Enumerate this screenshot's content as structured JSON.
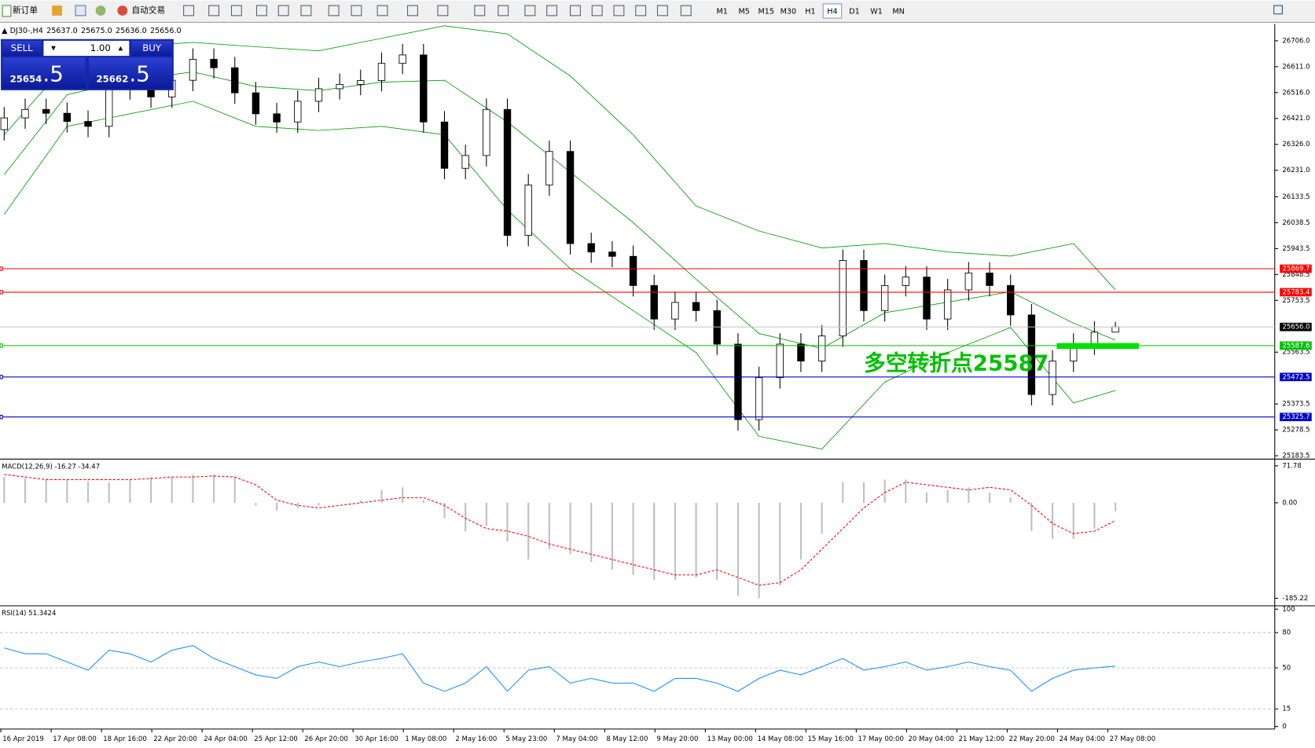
{
  "toolbar": {
    "new_order": "新订单",
    "auto_trading": "自动交易",
    "timeframes": [
      "M1",
      "M5",
      "M15",
      "M30",
      "H1",
      "H4",
      "D1",
      "W1",
      "MN"
    ],
    "active": "H4"
  },
  "trade_panel": {
    "sell": "SELL",
    "buy": "BUY",
    "lots": "1.00",
    "bid": {
      "main": "25654",
      "frac": ".5"
    },
    "ask": {
      "main": "25662",
      "frac": ".5"
    }
  },
  "chart_data": [
    {
      "type": "candlestick",
      "title": "DJ30-,H4",
      "quote": [
        "25637.0",
        "25675.0",
        "25636.0",
        "25656.0"
      ],
      "open": [
        26380,
        26423,
        26454,
        26440,
        26410,
        26392,
        26561,
        26530,
        26500,
        26561,
        26638,
        26607,
        26515,
        26438,
        26408,
        26484,
        26530,
        26546,
        26560,
        26623,
        26654,
        26408,
        26238,
        26285,
        26454,
        25992,
        26177,
        26300,
        25962,
        25931,
        25915,
        25808,
        25685,
        25746,
        25716,
        25593,
        25316,
        25470,
        25593,
        25531,
        25623,
        25900,
        25716,
        25808,
        25839,
        25685,
        25792,
        25854,
        25808,
        25700,
        25408,
        25531,
        25593,
        25637
      ],
      "high": [
        26463,
        26494,
        26494,
        26480,
        26450,
        26601,
        26601,
        26570,
        26601,
        26678,
        26678,
        26647,
        26555,
        26478,
        26524,
        26570,
        26586,
        26600,
        26663,
        26694,
        26694,
        26448,
        26325,
        26494,
        26494,
        26217,
        26340,
        26340,
        26002,
        25971,
        25955,
        25848,
        25786,
        25786,
        25756,
        25633,
        25510,
        25633,
        25633,
        25663,
        25940,
        25940,
        25848,
        25879,
        25879,
        25832,
        25894,
        25894,
        25848,
        25740,
        25571,
        25633,
        25677,
        25675
      ],
      "low": [
        26340,
        26383,
        26400,
        26370,
        26352,
        26352,
        26490,
        26460,
        26460,
        26521,
        26567,
        26475,
        26398,
        26368,
        26368,
        26444,
        26490,
        26506,
        26520,
        26583,
        26368,
        26198,
        26198,
        26245,
        25952,
        25952,
        26137,
        25922,
        25891,
        25875,
        25768,
        25645,
        25645,
        25676,
        25553,
        25276,
        25276,
        25430,
        25491,
        25491,
        25583,
        25676,
        25676,
        25768,
        25645,
        25645,
        25752,
        25768,
        25660,
        25368,
        25368,
        25491,
        25553,
        25636
      ],
      "close": [
        26423,
        26454,
        26440,
        26410,
        26392,
        26561,
        26530,
        26500,
        26561,
        26638,
        26607,
        26515,
        26438,
        26408,
        26484,
        26530,
        26546,
        26560,
        26623,
        26654,
        26408,
        26238,
        26285,
        26454,
        25992,
        26177,
        26300,
        25962,
        25931,
        25915,
        25808,
        25685,
        25746,
        25716,
        25593,
        25316,
        25470,
        25593,
        25531,
        25623,
        25900,
        25716,
        25808,
        25839,
        25685,
        25792,
        25854,
        25808,
        25700,
        25408,
        25531,
        25593,
        25637,
        25656
      ],
      "bands": {
        "color": "#00a000",
        "index": [
          0,
          3,
          6,
          9,
          12,
          15,
          18,
          21,
          24,
          27,
          30,
          33,
          36,
          39,
          42,
          45,
          48,
          51,
          53
        ],
        "upper": [
          26361,
          26623,
          26684,
          26700,
          26684,
          26669,
          26715,
          26761,
          26731,
          26577,
          26361,
          26100,
          26008,
          25946,
          25962,
          25931,
          25916,
          25962,
          25792
        ],
        "middle": [
          26215,
          26508,
          26561,
          26592,
          26538,
          26523,
          26554,
          26561,
          26408,
          26224,
          26039,
          25831,
          25632,
          25577,
          25708,
          25747,
          25785,
          25670,
          25608
        ],
        "lower": [
          26069,
          26392,
          26438,
          26484,
          26392,
          26377,
          26392,
          26361,
          26085,
          25870,
          25716,
          25562,
          25255,
          25208,
          25454,
          25562,
          25654,
          25377,
          25423
        ]
      },
      "levels": [
        {
          "value": 25869.7,
          "color": "#ff0000"
        },
        {
          "value": 25783.4,
          "color": "#ff0000"
        },
        {
          "value": 25587.6,
          "color": "#00c000"
        },
        {
          "value": 25472.5,
          "color": "#0000c8"
        },
        {
          "value": 25325.7,
          "color": "#0000c8"
        }
      ],
      "current": {
        "value": 25656,
        "label": "25656.0"
      },
      "annotation": "多空转折点25587",
      "ylim": [
        25174.3,
        26767.5
      ],
      "yticks": [
        {
          "value": 26706,
          "label": "26706.0"
        },
        {
          "value": 26611,
          "label": "26611.0"
        },
        {
          "value": 26516,
          "label": "26516.0"
        },
        {
          "value": 26421,
          "label": "26421.0"
        },
        {
          "value": 26326,
          "label": "26326.0"
        },
        {
          "value": 26231,
          "label": "26231.0"
        },
        {
          "value": 26133.5,
          "label": "26133.5"
        },
        {
          "value": 26038.5,
          "label": "26038.5"
        },
        {
          "value": 25943.5,
          "label": "25943.5"
        },
        {
          "value": 25848.5,
          "label": "25848.5"
        },
        {
          "value": 25753.5,
          "label": "25753.5"
        },
        {
          "value": 25563.5,
          "label": "25563.5"
        },
        {
          "value": 25373.5,
          "label": "25373.5"
        },
        {
          "value": 25278.5,
          "label": "25278.5"
        },
        {
          "value": 25183.5,
          "label": "25183.5"
        }
      ],
      "time_axis": [
        "16 Apr 2019",
        "17 Apr 08:00",
        "18 Apr 16:00",
        "22 Apr 20:00",
        "24 Apr 04:00",
        "25 Apr 12:00",
        "26 Apr 20:00",
        "30 Apr 16:00",
        "1 May 08:00",
        "2 May 16:00",
        "5 May 23:00",
        "7 May 04:00",
        "8 May 12:00",
        "9 May 20:00",
        "13 May 00:00",
        "14 May 08:00",
        "15 May 16:00",
        "17 May 00:00",
        "20 May 04:00",
        "21 May 12:00",
        "22 May 20:00",
        "24 May 04:00",
        "27 May 08:00"
      ]
    },
    {
      "type": "macd",
      "title": "MACD(12,26,9) -16.27 -34.47",
      "series": [
        {
          "color": "#c0c0c0",
          "values": [
            50,
            48,
            45,
            45,
            42,
            40,
            45,
            50,
            50,
            55,
            55,
            50,
            -5,
            -15,
            -10,
            -5,
            0,
            5,
            25,
            30,
            5,
            -30,
            -55,
            -45,
            -75,
            -110,
            -90,
            -100,
            -115,
            -130,
            -140,
            -150,
            -150,
            -145,
            -150,
            -180,
            -185,
            -160,
            -110,
            -60,
            40,
            40,
            45,
            45,
            20,
            25,
            30,
            20,
            10,
            -55,
            -70,
            -70,
            -50,
            -16.27
          ]
        },
        {
          "color": "#ff0000",
          "values": [
            55,
            50,
            45,
            45,
            45,
            45,
            45,
            47,
            50,
            50,
            52,
            50,
            35,
            5,
            -5,
            -10,
            -5,
            0,
            5,
            10,
            10,
            -5,
            -30,
            -50,
            -55,
            -65,
            -80,
            -90,
            -100,
            -110,
            -120,
            -130,
            -140,
            -140,
            -130,
            -145,
            -160,
            -155,
            -130,
            -90,
            -50,
            -10,
            20,
            40,
            35,
            30,
            25,
            30,
            25,
            -5,
            -40,
            -60,
            -55,
            -34.47
          ]
        }
      ],
      "ylim": [
        -196.6,
        83.2
      ],
      "yticks": [
        71.78,
        {
          "value": 0,
          "label": "0.00"
        },
        -185.22
      ]
    },
    {
      "type": "line",
      "title": "RSI(14) 51.3424",
      "color": "#1e90ff",
      "values": [
        67,
        62,
        62,
        55,
        48,
        65,
        62,
        55,
        65,
        69,
        58,
        51,
        44,
        41,
        51,
        55,
        51,
        55,
        58,
        62,
        37,
        30,
        37,
        51,
        30,
        48,
        51,
        37,
        41,
        37,
        37,
        30,
        41,
        41,
        37,
        30,
        41,
        48,
        44,
        51,
        58,
        48,
        51,
        55,
        48,
        51,
        55,
        51,
        48,
        30,
        41,
        48,
        50,
        51.3424
      ],
      "ylim": [
        0,
        100
      ],
      "yticks": [
        100,
        80,
        50,
        15,
        0
      ]
    }
  ]
}
